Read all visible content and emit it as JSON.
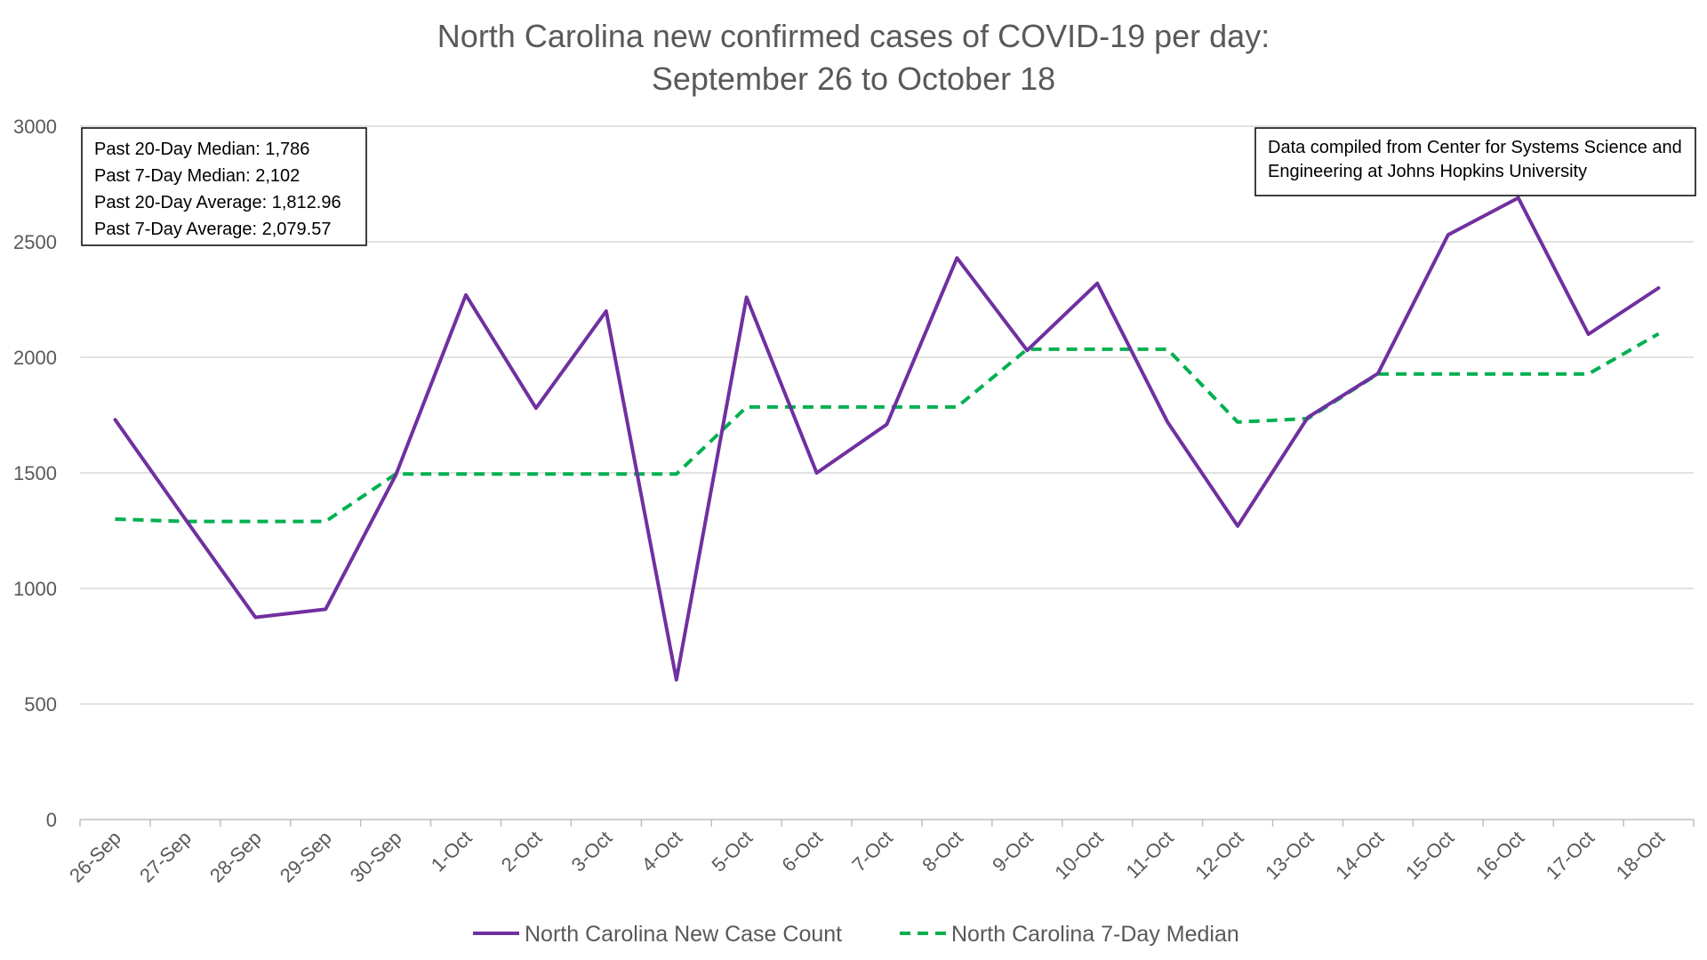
{
  "colors": {
    "case_count": "#7030a0",
    "median": "#00b050",
    "grid": "#d9d9d9",
    "text": "#595959"
  },
  "chart_data": {
    "type": "line",
    "title": "North Carolina new confirmed cases of COVID-19 per day:",
    "subtitle": "September 26 to October 18",
    "categories": [
      "26-Sep",
      "27-Sep",
      "28-Sep",
      "29-Sep",
      "30-Sep",
      "1-Oct",
      "2-Oct",
      "3-Oct",
      "4-Oct",
      "5-Oct",
      "6-Oct",
      "7-Oct",
      "8-Oct",
      "9-Oct",
      "10-Oct",
      "11-Oct",
      "12-Oct",
      "13-Oct",
      "14-Oct",
      "15-Oct",
      "16-Oct",
      "17-Oct",
      "18-Oct"
    ],
    "ylim": [
      0,
      3000
    ],
    "yticks": [
      "0",
      "500",
      "1000",
      "1500",
      "2000",
      "2500",
      "3000"
    ],
    "grid": true,
    "legend_position": "bottom",
    "series": [
      {
        "name": "North Carolina New Case Count",
        "style": "solid",
        "values": [
          1730,
          1300,
          875,
          910,
          1490,
          2270,
          1780,
          2200,
          605,
          2260,
          1500,
          1710,
          2430,
          2030,
          2320,
          1720,
          1270,
          1740,
          1930,
          2530,
          2690,
          2100,
          2300
        ]
      },
      {
        "name": "North Carolina 7-Day Median",
        "style": "dashed",
        "values": [
          1300,
          1290,
          1290,
          1290,
          1495,
          1495,
          1495,
          1495,
          1495,
          1785,
          1785,
          1785,
          1785,
          2035,
          2035,
          2035,
          1720,
          1735,
          1928,
          1928,
          1928,
          1928,
          2102
        ]
      }
    ],
    "annotations": {
      "stats": [
        "Past 20-Day Median: 1,786",
        "Past 7-Day Median: 2,102",
        "Past 20-Day Average: 1,812.96",
        "Past 7-Day Average: 2,079.57"
      ],
      "source": [
        "Data compiled from Center for Systems Science and",
        "Engineering at Johns Hopkins University"
      ]
    }
  }
}
